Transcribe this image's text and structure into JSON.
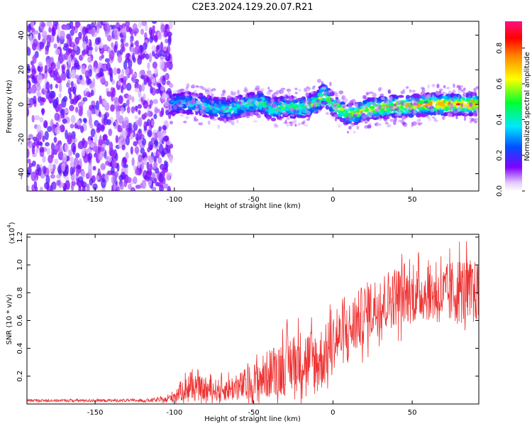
{
  "title": "C2E3.2024.129.20.07.R21",
  "chart_data": [
    {
      "type": "heatmap",
      "title": "C2E3.2024.129.20.07.R21",
      "xlabel": "Height of straight line (km)",
      "ylabel": "Frequency (Hz)",
      "xlim": [
        -193,
        92
      ],
      "ylim": [
        -50,
        48
      ],
      "xticks": [
        -150,
        -100,
        -50,
        0,
        50
      ],
      "yticks": [
        -40,
        -20,
        0,
        20,
        40
      ],
      "regions": [
        {
          "name": "noise",
          "x_range": [
            -193,
            -102
          ],
          "freq_range": [
            -50,
            48
          ],
          "amplitude": "low (0.0-0.3)"
        },
        {
          "name": "signal-band",
          "x_range": [
            -102,
            92
          ],
          "center_freq_hz": 0,
          "amplitude": "0.2-0.95"
        }
      ],
      "band_center": {
        "x": [
          -102,
          -95,
          -85,
          -75,
          -65,
          -55,
          -45,
          -38,
          -30,
          -20,
          -10,
          -6,
          0,
          5,
          10,
          15,
          20,
          30,
          40,
          50,
          60,
          70,
          80,
          92
        ],
        "y": [
          0,
          1,
          0,
          -2,
          -3,
          0,
          1,
          -3,
          -1,
          -2,
          1,
          6,
          0,
          -3,
          -6,
          -5,
          -3,
          -2,
          -1,
          -1,
          0,
          0,
          0,
          0
        ]
      },
      "colorbar": {
        "label": "Normalized spectral amplitude",
        "range": [
          0.0,
          0.95
        ],
        "ticks": [
          0.0,
          0.2,
          0.4,
          0.6,
          0.8
        ]
      }
    },
    {
      "type": "line",
      "xlabel": "Height of straight line (km)",
      "ylabel": "SNR (10 * v/v)",
      "scale_label": "(x10",
      "scale_exp": "4",
      "scale_close": ")",
      "xlim": [
        -193,
        92
      ],
      "ylim": [
        0.0,
        1.22
      ],
      "xticks": [
        -150,
        -100,
        -50,
        0,
        50
      ],
      "yticks": [
        0.2,
        0.4,
        0.6,
        0.8,
        1.0,
        1.2
      ],
      "ytick_labels": [
        "0.2",
        "0.4",
        "0.6",
        "0.8",
        "1.0",
        "1.2"
      ],
      "series": [
        {
          "name": "SNR",
          "color": "#ee3333",
          "x": [
            -193,
            -180,
            -160,
            -140,
            -120,
            -105,
            -100,
            -95,
            -90,
            -80,
            -70,
            -60,
            -50,
            -40,
            -30,
            -20,
            -10,
            -5,
            0,
            10,
            20,
            30,
            40,
            50,
            60,
            70,
            80,
            92
          ],
          "y": [
            0.025,
            0.025,
            0.025,
            0.025,
            0.025,
            0.03,
            0.06,
            0.1,
            0.12,
            0.1,
            0.1,
            0.12,
            0.15,
            0.22,
            0.28,
            0.32,
            0.3,
            0.35,
            0.45,
            0.52,
            0.65,
            0.72,
            0.78,
            0.78,
            0.8,
            0.78,
            0.82,
            0.8
          ],
          "noise_amplitude": [
            0.01,
            0.01,
            0.01,
            0.01,
            0.01,
            0.02,
            0.05,
            0.08,
            0.1,
            0.08,
            0.08,
            0.1,
            0.15,
            0.18,
            0.22,
            0.22,
            0.25,
            0.22,
            0.2,
            0.22,
            0.22,
            0.22,
            0.22,
            0.2,
            0.2,
            0.22,
            0.25,
            0.22
          ]
        }
      ]
    }
  ]
}
